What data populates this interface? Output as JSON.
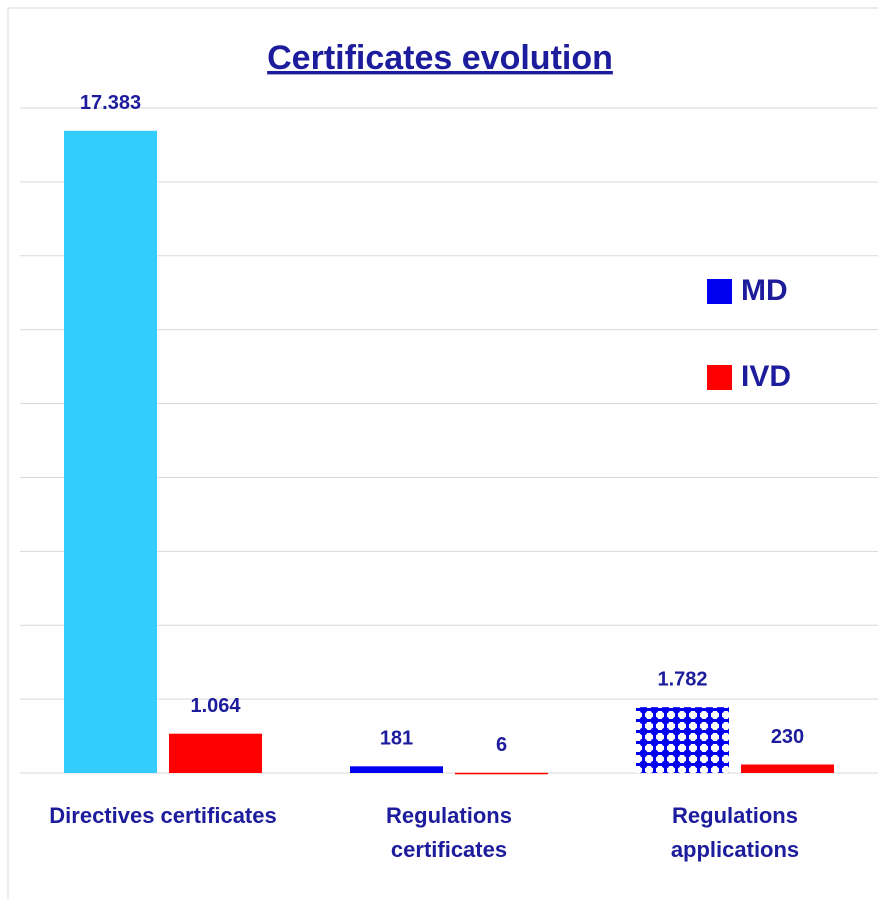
{
  "chart_data": {
    "type": "bar",
    "title": "Certificates evolution",
    "categories": [
      "Directives certificates",
      "Regulations certificates",
      "Regulations applications"
    ],
    "series": [
      {
        "name": "MD",
        "color": "#0000ee",
        "colors": [
          "#33ccff",
          "#0000ee",
          "#0000ee"
        ],
        "patterns": [
          "solid",
          "solid",
          "dots"
        ],
        "values": [
          17383,
          181,
          1782
        ],
        "value_labels": [
          "17.383",
          "181",
          "1.782"
        ]
      },
      {
        "name": "IVD",
        "color": "#ff0000",
        "colors": [
          "#ff0000",
          "#ff0000",
          "#ff0000"
        ],
        "patterns": [
          "solid",
          "solid",
          "solid"
        ],
        "values": [
          1064,
          6,
          230
        ],
        "value_labels": [
          "1.064",
          "6",
          "230"
        ]
      }
    ],
    "ylim": [
      0,
      18000
    ],
    "yticks": [
      0,
      2000,
      4000,
      6000,
      8000,
      10000,
      12000,
      14000,
      16000,
      18000
    ],
    "grid": true,
    "legend": "right"
  }
}
